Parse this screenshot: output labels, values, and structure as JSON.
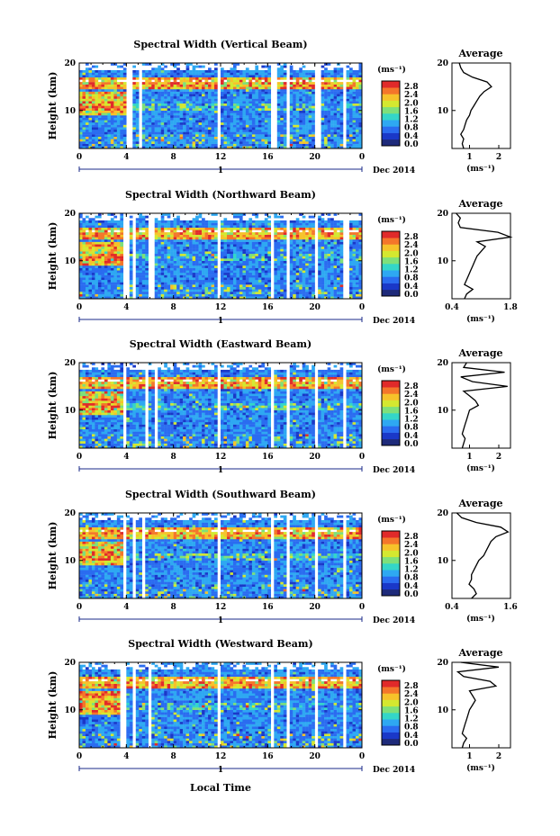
{
  "figure": {
    "x_axis_label": "Local Time",
    "colorbar_unit": "(ms⁻¹)",
    "date_label": "Dec 2014",
    "day_tick": "1",
    "y_axis_label": "Height (km)",
    "avg_title": "Average",
    "avg_xlabel": "(ms⁻¹)"
  },
  "colorbar": {
    "ticks": [
      "0.0",
      "0.4",
      "0.8",
      "1.2",
      "1.6",
      "2.0",
      "2.4",
      "2.8"
    ],
    "colors": [
      "#1e2a7a",
      "#1a38c8",
      "#2a6cf0",
      "#2ea8f2",
      "#34d6c8",
      "#7ee07a",
      "#d4e830",
      "#f6c22a",
      "#f4762a",
      "#e02a2a"
    ]
  },
  "chart_data": [
    {
      "type": "heatmap",
      "title": "Spectral Width (Vertical Beam)",
      "x": {
        "ticks": [
          "0",
          "4",
          "8",
          "12",
          "16",
          "20",
          "0"
        ],
        "range": [
          0,
          24
        ],
        "unit": "hours"
      },
      "y": {
        "ticks": [
          "10",
          "20"
        ],
        "range": [
          2,
          20
        ],
        "unit": "km"
      },
      "colorbar_range": [
        0.0,
        2.8
      ],
      "gaps_hours": [
        [
          4.0,
          4.5
        ],
        [
          5.0,
          5.4
        ],
        [
          11.8,
          12.1
        ],
        [
          16.4,
          16.7
        ],
        [
          17.5,
          17.8
        ],
        [
          20.0,
          20.4
        ],
        [
          22.3,
          22.6
        ]
      ],
      "average_profile": {
        "xticks": [
          "1",
          "2"
        ],
        "xrange": [
          0.4,
          2.4
        ],
        "height_km": [
          2,
          3,
          4,
          5,
          6,
          7,
          8,
          9,
          10,
          11,
          12,
          13,
          14,
          15,
          16,
          17,
          18,
          19,
          20
        ],
        "value": [
          0.8,
          0.75,
          0.8,
          0.7,
          0.8,
          0.85,
          0.9,
          1.0,
          1.05,
          1.15,
          1.25,
          1.35,
          1.5,
          1.75,
          1.6,
          1.1,
          0.8,
          0.7,
          0.65
        ]
      }
    },
    {
      "type": "heatmap",
      "title": "Spectral Width (Northward Beam)",
      "x": {
        "ticks": [
          "0",
          "4",
          "8",
          "12",
          "16",
          "20",
          "0"
        ],
        "range": [
          0,
          24
        ],
        "unit": "hours"
      },
      "y": {
        "ticks": [
          "10",
          "20"
        ],
        "range": [
          2,
          20
        ],
        "unit": "km"
      },
      "colorbar_range": [
        0.0,
        2.8
      ],
      "gaps_hours": [
        [
          3.8,
          4.2
        ],
        [
          4.6,
          4.9
        ],
        [
          6.0,
          6.3
        ],
        [
          11.8,
          12.0
        ],
        [
          16.4,
          16.6
        ],
        [
          17.5,
          17.8
        ],
        [
          20.0,
          20.3
        ],
        [
          22.5,
          22.8
        ]
      ],
      "average_profile": {
        "xticks": [
          "0.4",
          "1.8"
        ],
        "xrange": [
          0.4,
          1.8
        ],
        "height_km": [
          2,
          3,
          4,
          5,
          6,
          7,
          8,
          9,
          10,
          11,
          12,
          13,
          14,
          15,
          16,
          17,
          18,
          19,
          20
        ],
        "value": [
          0.7,
          0.75,
          0.9,
          0.7,
          0.75,
          0.8,
          0.85,
          0.9,
          0.95,
          1.0,
          1.1,
          1.2,
          1.0,
          1.8,
          1.5,
          0.6,
          0.55,
          0.6,
          0.5
        ]
      }
    },
    {
      "type": "heatmap",
      "title": "Spectral Width (Eastward Beam)",
      "x": {
        "ticks": [
          "0",
          "4",
          "8",
          "12",
          "16",
          "20",
          "0"
        ],
        "range": [
          0,
          24
        ],
        "unit": "hours"
      },
      "y": {
        "ticks": [
          "10",
          "20"
        ],
        "range": [
          2,
          20
        ],
        "unit": "km"
      },
      "colorbar_range": [
        0.0,
        2.8
      ],
      "gaps_hours": [
        [
          3.6,
          4.0
        ],
        [
          5.6,
          5.9
        ],
        [
          6.4,
          6.7
        ],
        [
          11.8,
          12.1
        ],
        [
          16.3,
          16.6
        ],
        [
          17.6,
          17.9
        ],
        [
          20.0,
          20.3
        ],
        [
          22.4,
          22.7
        ]
      ],
      "average_profile": {
        "xticks": [
          "1",
          "2"
        ],
        "xrange": [
          0.4,
          2.4
        ],
        "height_km": [
          2,
          3,
          4,
          5,
          6,
          7,
          8,
          9,
          10,
          11,
          12,
          13,
          14,
          15,
          16,
          17,
          18,
          19,
          20
        ],
        "value": [
          0.75,
          0.8,
          0.85,
          0.75,
          0.8,
          0.85,
          0.9,
          0.95,
          1.0,
          1.3,
          1.2,
          1.0,
          0.8,
          2.3,
          1.1,
          0.7,
          2.2,
          0.8,
          0.9
        ]
      }
    },
    {
      "type": "heatmap",
      "title": "Spectral Width (Southward Beam)",
      "x": {
        "ticks": [
          "0",
          "4",
          "8",
          "12",
          "16",
          "20",
          "0"
        ],
        "range": [
          0,
          24
        ],
        "unit": "hours"
      },
      "y": {
        "ticks": [
          "10",
          "20"
        ],
        "range": [
          2,
          20
        ],
        "unit": "km"
      },
      "colorbar_range": [
        0.0,
        2.8
      ],
      "gaps_hours": [
        [
          3.6,
          4.0
        ],
        [
          4.5,
          4.8
        ],
        [
          5.3,
          5.6
        ],
        [
          11.8,
          12.1
        ],
        [
          16.3,
          16.6
        ],
        [
          17.5,
          17.8
        ],
        [
          20.0,
          20.3
        ],
        [
          22.4,
          22.7
        ]
      ],
      "average_profile": {
        "xticks": [
          "0.4",
          "1.6"
        ],
        "xrange": [
          0.4,
          1.6
        ],
        "height_km": [
          2,
          3,
          4,
          5,
          6,
          7,
          8,
          9,
          10,
          11,
          12,
          13,
          14,
          15,
          16,
          17,
          18,
          19,
          20
        ],
        "value": [
          0.8,
          0.9,
          0.85,
          0.75,
          0.8,
          0.8,
          0.85,
          0.9,
          0.95,
          1.05,
          1.1,
          1.15,
          1.2,
          1.3,
          1.55,
          1.4,
          0.9,
          0.6,
          0.5
        ]
      }
    },
    {
      "type": "heatmap",
      "title": "Spectral Width (Westward Beam)",
      "x": {
        "ticks": [
          "0",
          "4",
          "8",
          "12",
          "16",
          "20",
          "0"
        ],
        "range": [
          0,
          24
        ],
        "unit": "hours"
      },
      "y": {
        "ticks": [
          "10",
          "20"
        ],
        "range": [
          2,
          20
        ],
        "unit": "km"
      },
      "colorbar_range": [
        0.0,
        2.8
      ],
      "gaps_hours": [
        [
          3.5,
          3.9
        ],
        [
          4.6,
          4.9
        ],
        [
          5.8,
          6.1
        ],
        [
          11.8,
          12.1
        ],
        [
          16.3,
          16.6
        ],
        [
          17.5,
          17.8
        ],
        [
          20.0,
          20.3
        ],
        [
          22.4,
          22.7
        ]
      ],
      "average_profile": {
        "xticks": [
          "1",
          "2"
        ],
        "xrange": [
          0.4,
          2.4
        ],
        "height_km": [
          2,
          3,
          4,
          5,
          6,
          7,
          8,
          9,
          10,
          11,
          12,
          13,
          14,
          15,
          16,
          17,
          18,
          19,
          20
        ],
        "value": [
          0.75,
          0.8,
          0.9,
          0.75,
          0.8,
          0.85,
          0.9,
          0.95,
          1.0,
          1.1,
          1.2,
          1.1,
          1.0,
          1.9,
          1.7,
          0.8,
          0.6,
          2.0,
          0.7
        ]
      }
    }
  ]
}
